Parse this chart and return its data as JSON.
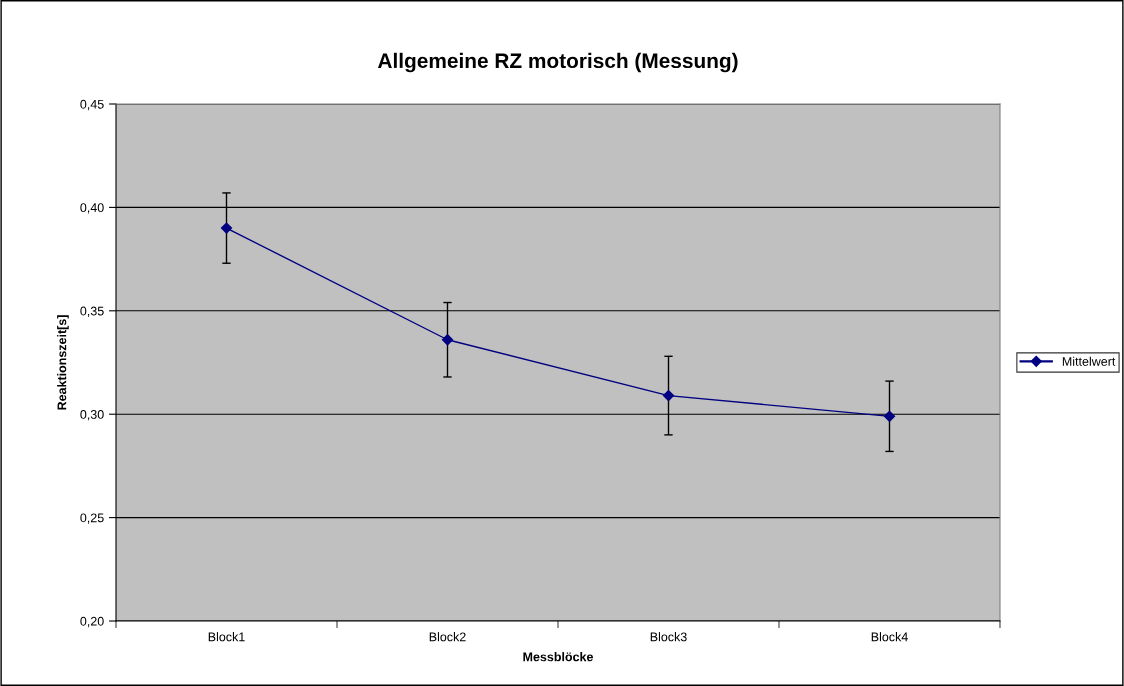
{
  "chart_data": {
    "type": "line",
    "title": "Allgemeine RZ motorisch (Messung)",
    "xlabel": "Messblöcke",
    "ylabel": "Reaktionszeit[s]",
    "categories": [
      "Block1",
      "Block2",
      "Block3",
      "Block4"
    ],
    "series": [
      {
        "name": "Mittelwert",
        "color": "#000080",
        "values": [
          0.39,
          0.336,
          0.309,
          0.299
        ],
        "errors": [
          0.017,
          0.018,
          0.019,
          0.017
        ]
      }
    ],
    "ylim": [
      0.2,
      0.45
    ],
    "yticks": [
      {
        "value": 0.2,
        "label": "0,20"
      },
      {
        "value": 0.25,
        "label": "0,25"
      },
      {
        "value": 0.3,
        "label": "0,30"
      },
      {
        "value": 0.35,
        "label": "0,35"
      },
      {
        "value": 0.4,
        "label": "0,40"
      },
      {
        "value": 0.45,
        "label": "0,45"
      }
    ],
    "grid": "y",
    "legend": "right",
    "marker": "diamond",
    "line_style": "solid"
  }
}
